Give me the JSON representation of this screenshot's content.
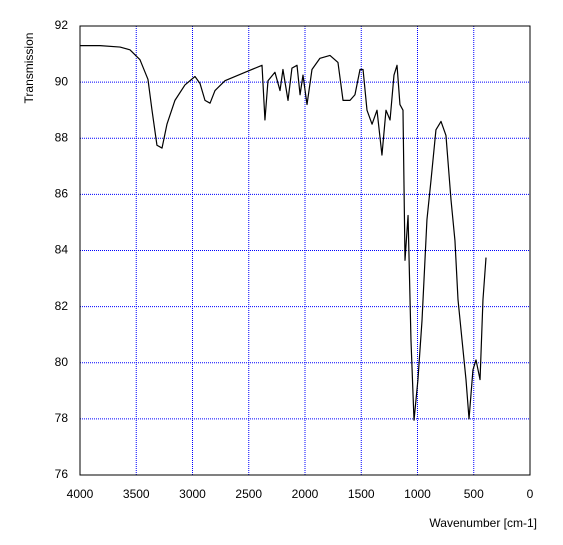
{
  "chart_data": {
    "type": "line",
    "xlabel": "Wavenumber [cm-1]",
    "ylabel": "Transmission",
    "xlim": [
      4000,
      0
    ],
    "xticks": [
      4000,
      3500,
      3000,
      2500,
      2000,
      1500,
      1000,
      500,
      0
    ],
    "ylim": [
      76,
      92
    ],
    "yticks": [
      76,
      78,
      80,
      82,
      84,
      86,
      88,
      90,
      92
    ],
    "grid": true,
    "x": [
      4000,
      3822,
      3644,
      3556,
      3467,
      3396,
      3360,
      3316,
      3271,
      3227,
      3156,
      3067,
      2978,
      2933,
      2889,
      2844,
      2800,
      2711,
      2533,
      2382,
      2356,
      2329,
      2267,
      2222,
      2196,
      2151,
      2116,
      2071,
      2044,
      2018,
      1982,
      1938,
      1867,
      1778,
      1707,
      1662,
      1600,
      1556,
      1511,
      1484,
      1449,
      1404,
      1360,
      1316,
      1280,
      1244,
      1209,
      1182,
      1156,
      1129,
      1111,
      1084,
      1058,
      1031,
      996,
      960,
      916,
      880,
      836,
      791,
      747,
      702,
      667,
      640,
      604,
      569,
      542,
      507,
      480,
      444,
      418,
      391
    ],
    "series": [
      {
        "color": "#000000",
        "values": [
          91.3,
          91.3,
          91.25,
          91.15,
          90.8,
          90.1,
          89.0,
          87.75,
          87.65,
          88.5,
          89.35,
          89.9,
          90.2,
          89.95,
          89.35,
          89.25,
          89.7,
          90.05,
          90.35,
          90.6,
          88.65,
          90.05,
          90.35,
          89.7,
          90.45,
          89.35,
          90.5,
          90.6,
          89.55,
          90.25,
          89.2,
          90.45,
          90.85,
          90.95,
          90.7,
          89.35,
          89.35,
          89.55,
          90.45,
          90.45,
          89.0,
          88.5,
          89.0,
          87.4,
          89.0,
          88.65,
          90.25,
          90.6,
          89.2,
          89.0,
          83.65,
          85.25,
          80.8,
          77.95,
          79.4,
          81.5,
          85.1,
          86.5,
          88.3,
          88.6,
          88.1,
          85.8,
          84.35,
          82.25,
          80.8,
          79.4,
          78.0,
          79.75,
          80.1,
          79.4,
          82.25,
          83.75
        ]
      }
    ]
  }
}
